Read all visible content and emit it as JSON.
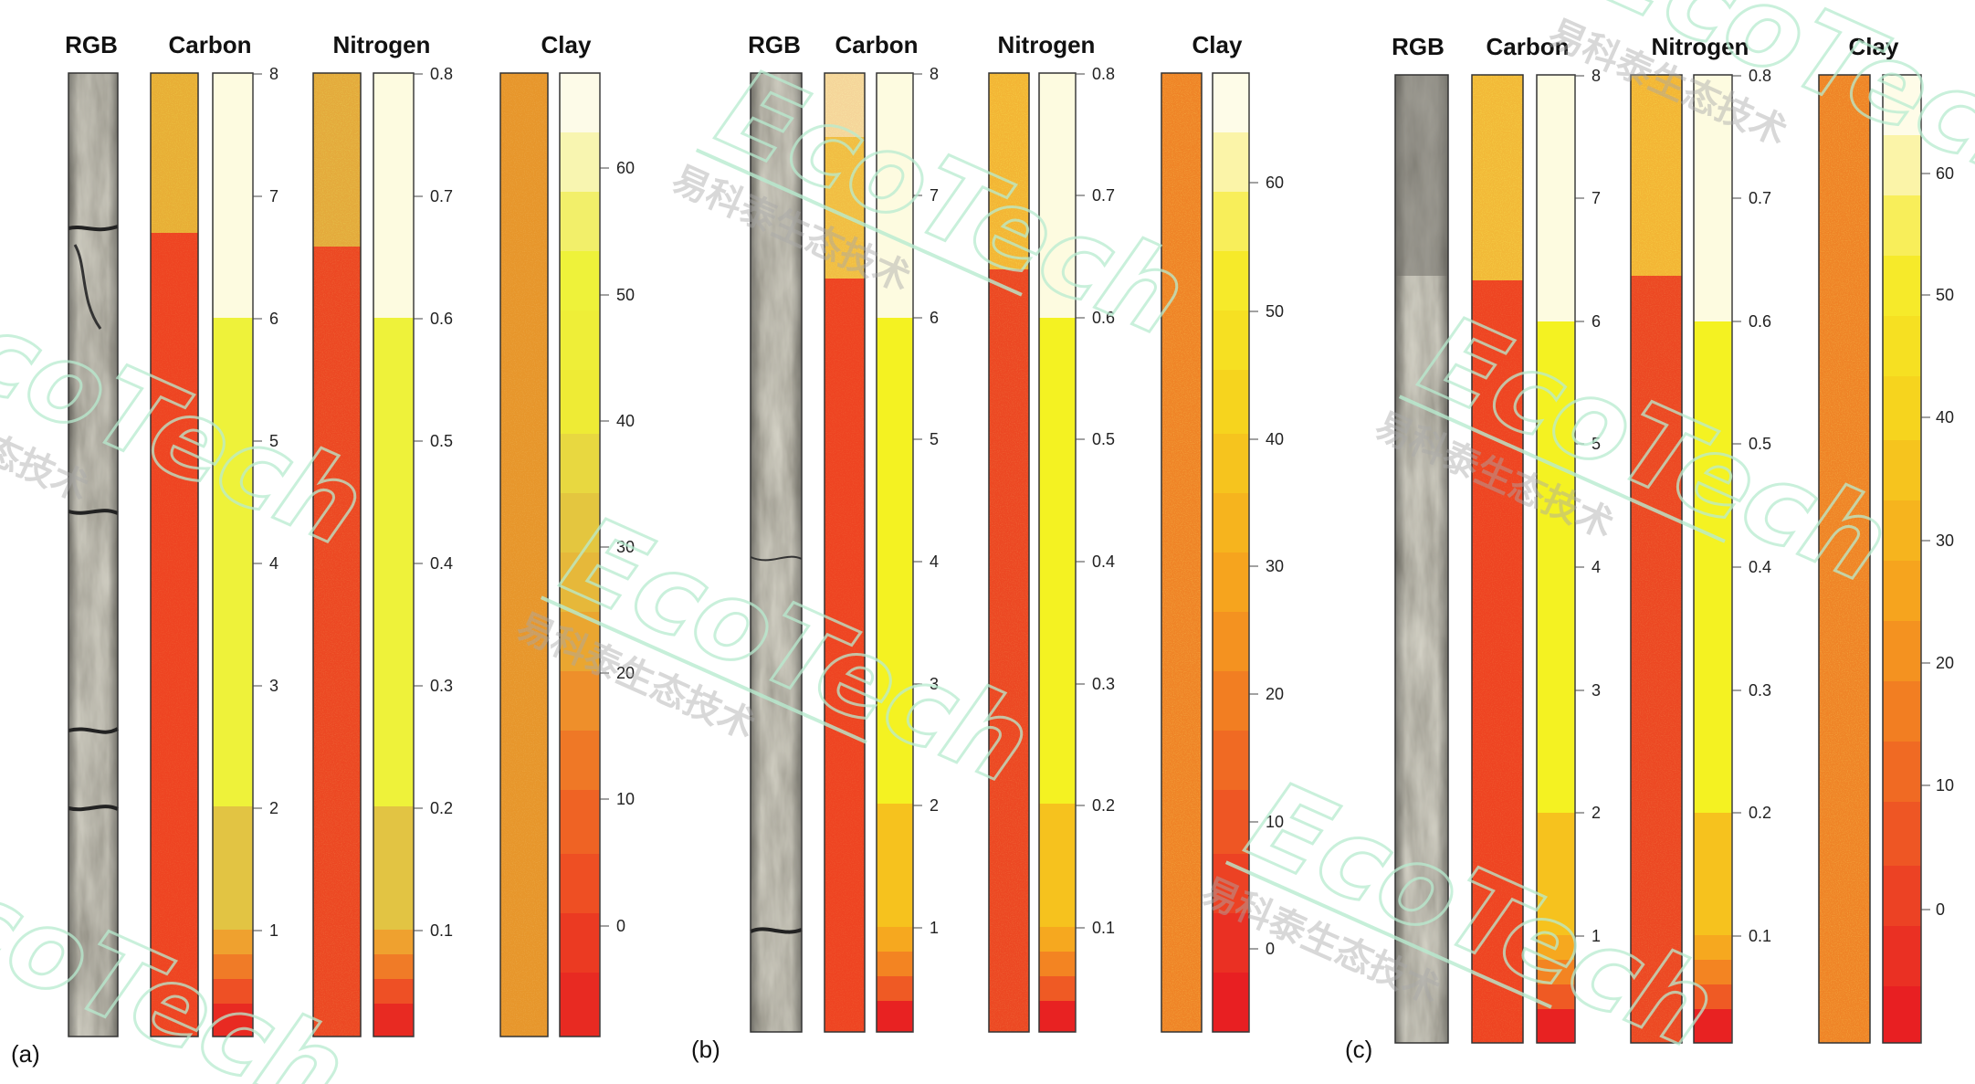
{
  "panels": [
    {
      "label": "(a)",
      "titles": {
        "rgb": "RGB",
        "carbon": "Carbon",
        "nitrogen": "Nitrogen",
        "clay": "Clay"
      },
      "carbon_ticks": [
        "1",
        "2",
        "3",
        "4",
        "5",
        "6",
        "7",
        "8"
      ],
      "nitrogen_ticks": [
        "0.1",
        "0.2",
        "0.3",
        "0.4",
        "0.5",
        "0.6",
        "0.7",
        "0.8"
      ],
      "clay_ticks": [
        "0",
        "10",
        "20",
        "30",
        "40",
        "50",
        "60"
      ]
    },
    {
      "label": "(b)",
      "titles": {
        "rgb": "RGB",
        "carbon": "Carbon",
        "nitrogen": "Nitrogen",
        "clay": "Clay"
      },
      "carbon_ticks": [
        "1",
        "2",
        "3",
        "4",
        "5",
        "6",
        "7",
        "8"
      ],
      "nitrogen_ticks": [
        "0.1",
        "0.2",
        "0.3",
        "0.4",
        "0.5",
        "0.6",
        "0.7",
        "0.8"
      ],
      "clay_ticks": [
        "0",
        "10",
        "20",
        "30",
        "40",
        "50",
        "60"
      ]
    },
    {
      "label": "(c)",
      "titles": {
        "rgb": "RGB",
        "carbon": "Carbon",
        "nitrogen": "Nitrogen",
        "clay": "Clay"
      },
      "carbon_ticks": [
        "1",
        "2",
        "3",
        "4",
        "5",
        "6",
        "7",
        "8"
      ],
      "nitrogen_ticks": [
        "0.1",
        "0.2",
        "0.3",
        "0.4",
        "0.5",
        "0.6",
        "0.7",
        "0.8"
      ],
      "clay_ticks": [
        "0",
        "10",
        "20",
        "30",
        "40",
        "50",
        "60"
      ]
    }
  ],
  "watermark": {
    "brand": "EcoTech",
    "registered": "®",
    "cn": "易科泰生态技术"
  },
  "colors": {
    "carbon_image_top": "#e8c23a",
    "carbon_image_body": "#ee4422",
    "clay_image": "#e7962c",
    "core_gray": "#9a958a",
    "watermark_green": "#b8ecd0"
  }
}
